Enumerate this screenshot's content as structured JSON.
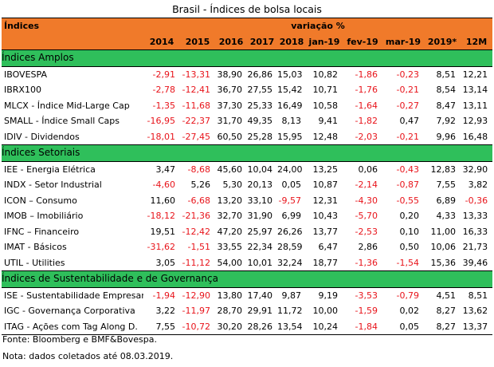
{
  "title": "Brasil - Índices de bolsa locais",
  "header": {
    "indices_label": "Índices",
    "variacao_label": "variação %",
    "columns": [
      "2014",
      "2015",
      "2016",
      "2017",
      "2018",
      "jan-19",
      "fev-19",
      "mar-19",
      "2019*",
      "12M"
    ]
  },
  "sections": [
    {
      "title": "Índices Amplos",
      "rows": [
        {
          "name": "IBOVESPA",
          "values": [
            "-2,91",
            "-13,31",
            "38,90",
            "26,86",
            "15,03",
            "10,82",
            "-1,86",
            "-0,23",
            "8,51",
            "12,21"
          ]
        },
        {
          "name": "IBRX100",
          "values": [
            "-2,78",
            "-12,41",
            "36,70",
            "27,55",
            "15,42",
            "10,71",
            "-1,76",
            "-0,21",
            "8,54",
            "13,14"
          ]
        },
        {
          "name": "MLCX - Índice Mid-Large Cap",
          "values": [
            "-1,35",
            "-11,68",
            "37,30",
            "25,33",
            "16,49",
            "10,58",
            "-1,64",
            "-0,27",
            "8,47",
            "13,11"
          ]
        },
        {
          "name": "SMALL - Índice Small Caps",
          "values": [
            "-16,95",
            "-22,37",
            "31,70",
            "49,35",
            "8,13",
            "9,41",
            "-1,82",
            "0,47",
            "7,92",
            "12,93"
          ]
        },
        {
          "name": "IDIV - Dividendos",
          "values": [
            "-18,01",
            "-27,45",
            "60,50",
            "25,28",
            "15,95",
            "12,48",
            "-2,03",
            "-0,21",
            "9,96",
            "16,48"
          ]
        }
      ]
    },
    {
      "title": "Índices Setoriais",
      "rows": [
        {
          "name": "IEE - Energia Elétrica",
          "values": [
            "3,47",
            "-8,68",
            "45,60",
            "10,04",
            "24,00",
            "13,25",
            "0,06",
            "-0,43",
            "12,83",
            "32,90"
          ]
        },
        {
          "name": "INDX - Setor Industrial",
          "values": [
            "-4,60",
            "5,26",
            "5,30",
            "20,13",
            "0,05",
            "10,87",
            "-2,14",
            "-0,87",
            "7,55",
            "3,82"
          ]
        },
        {
          "name": "ICON – Consumo",
          "values": [
            "11,60",
            "-6,68",
            "13,20",
            "33,10",
            "-9,57",
            "12,31",
            "-4,30",
            "-0,55",
            "6,89",
            "-0,36"
          ]
        },
        {
          "name": "IMOB – Imobiliário",
          "values": [
            "-18,12",
            "-21,36",
            "32,70",
            "31,90",
            "6,99",
            "10,43",
            "-5,70",
            "0,20",
            "4,33",
            "13,33"
          ]
        },
        {
          "name": "IFNC – Financeiro",
          "values": [
            "19,51",
            "-12,42",
            "47,20",
            "25,97",
            "26,26",
            "13,77",
            "-2,53",
            "0,10",
            "11,00",
            "16,33"
          ]
        },
        {
          "name": "IMAT - Básicos",
          "values": [
            "-31,62",
            "-1,51",
            "33,55",
            "22,34",
            "28,59",
            "6,47",
            "2,86",
            "0,50",
            "10,06",
            "21,73"
          ]
        },
        {
          "name": "UTIL - Utilities",
          "values": [
            "3,05",
            "-11,12",
            "54,00",
            "10,01",
            "32,24",
            "18,77",
            "-1,36",
            "-1,54",
            "15,36",
            "39,46"
          ]
        }
      ]
    },
    {
      "title": "Índices de Sustentabilidade e de Governança",
      "rows": [
        {
          "name": "ISE - Sustentabilidade Empresaria",
          "values": [
            "-1,94",
            "-12,90",
            "13,80",
            "17,40",
            "9,87",
            "9,19",
            "-3,53",
            "-0,79",
            "4,51",
            "8,51"
          ]
        },
        {
          "name": "IGC - Governança Corporativa",
          "values": [
            "3,22",
            "-11,97",
            "28,70",
            "29,91",
            "11,72",
            "10,00",
            "-1,59",
            "0,02",
            "8,27",
            "13,62"
          ]
        },
        {
          "name": "ITAG - Ações com Tag Along D.",
          "values": [
            "7,55",
            "-10,72",
            "30,20",
            "28,26",
            "13,54",
            "10,24",
            "-1,84",
            "0,05",
            "8,27",
            "13,37"
          ]
        }
      ]
    }
  ],
  "footer": {
    "source": "Fonte: Bloomberg e BMF&Bovespa.",
    "note": "Nota: dados coletados até 08.03.2019."
  },
  "colors": {
    "header_bg": "#f07a2a",
    "section_bg": "#2fbf5b",
    "negative_text": "#e8141b"
  }
}
